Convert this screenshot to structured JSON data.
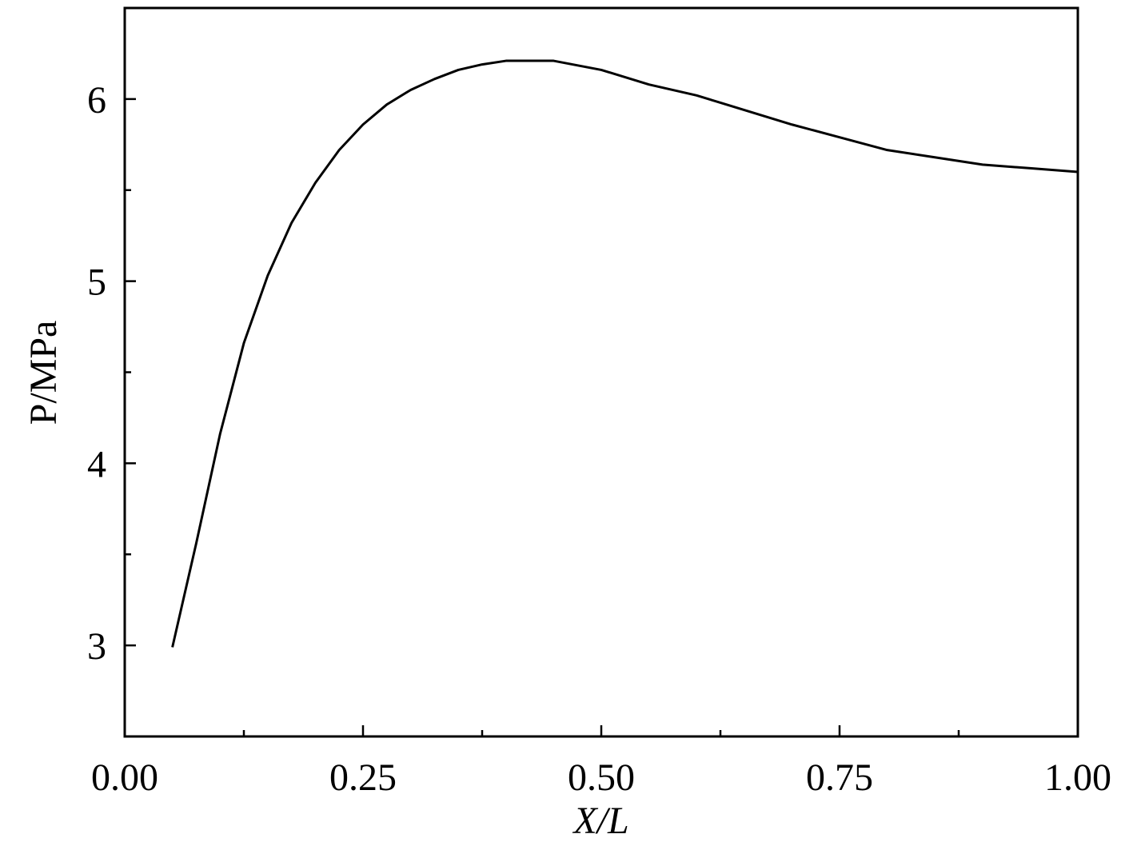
{
  "chart_data": {
    "type": "line",
    "x_label": "X/L",
    "y_label": "P/MPa",
    "x": [
      0.05,
      0.075,
      0.1,
      0.125,
      0.15,
      0.175,
      0.2,
      0.225,
      0.25,
      0.275,
      0.3,
      0.325,
      0.35,
      0.375,
      0.4,
      0.45,
      0.5,
      0.55,
      0.6,
      0.65,
      0.7,
      0.75,
      0.8,
      0.85,
      0.9,
      0.95,
      1.0
    ],
    "series": [
      {
        "color": "#000000",
        "values": [
          2.99,
          3.56,
          4.16,
          4.66,
          5.03,
          5.32,
          5.54,
          5.72,
          5.86,
          5.97,
          6.05,
          6.11,
          6.16,
          6.19,
          6.21,
          6.21,
          6.16,
          6.08,
          6.02,
          5.94,
          5.86,
          5.79,
          5.72,
          5.68,
          5.64,
          5.62,
          5.6
        ]
      }
    ],
    "xlim": [
      0,
      1
    ],
    "ylim": [
      2.5,
      6.5
    ],
    "xticks": [
      {
        "value": 0,
        "label": "0.00"
      },
      {
        "value": 0.25,
        "label": "0.25"
      },
      {
        "value": 0.5,
        "label": "0.50"
      },
      {
        "value": 0.75,
        "label": "0.75"
      },
      {
        "value": 1,
        "label": "1.00"
      }
    ],
    "xminorticks": [
      0.125,
      0.375,
      0.625,
      0.875
    ],
    "yticks": [
      3,
      4,
      5,
      6
    ],
    "yminorticks": [
      3.5,
      4.5,
      5.5
    ],
    "grid": false
  }
}
